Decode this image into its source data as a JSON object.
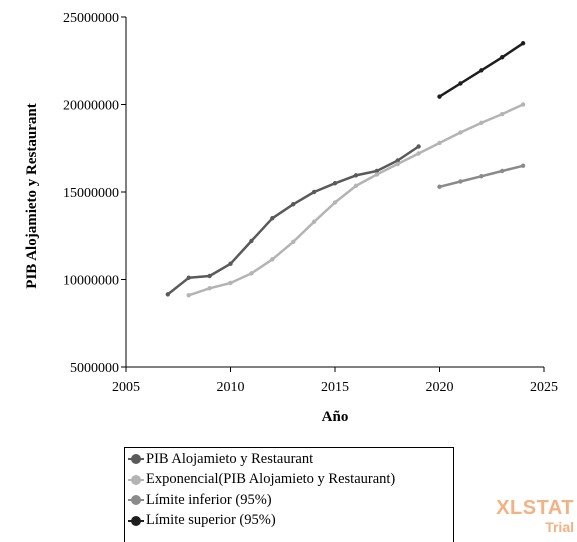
{
  "chart_data": {
    "type": "line",
    "title": "",
    "xlabel": "Año",
    "ylabel": "PIB Alojamieto y Restaurant",
    "xlim": [
      2005,
      2025
    ],
    "ylim": [
      5000000,
      25000000
    ],
    "x_ticks": [
      "2005",
      "2010",
      "2015",
      "2020",
      "2025"
    ],
    "y_ticks": [
      "5000000",
      "10000000",
      "15000000",
      "20000000",
      "25000000"
    ],
    "grid": false,
    "legend_position": "bottom",
    "series": [
      {
        "name": "PIB Alojamieto y Restaurant",
        "color": "#5a5a5a",
        "x": [
          2007,
          2008,
          2009,
          2010,
          2011,
          2012,
          2013,
          2014,
          2015,
          2016,
          2017,
          2018,
          2019
        ],
        "y": [
          9150000,
          10100000,
          10200000,
          10900000,
          12200000,
          13500000,
          14300000,
          15000000,
          15500000,
          15950000,
          16200000,
          16800000,
          17600000
        ]
      },
      {
        "name": "Exponencial(PIB Alojamieto y Restaurant)",
        "color": "#b4b4b4",
        "x": [
          2008,
          2009,
          2010,
          2011,
          2012,
          2013,
          2014,
          2015,
          2016,
          2017,
          2018,
          2019,
          2020,
          2021,
          2022,
          2023,
          2024
        ],
        "y": [
          9100000,
          9500000,
          9800000,
          10350000,
          11150000,
          12150000,
          13300000,
          14400000,
          15350000,
          16000000,
          16600000,
          17200000,
          17800000,
          18400000,
          18950000,
          19450000,
          20000000
        ]
      },
      {
        "name": "Límite inferior (95%)",
        "color": "#8a8a8a",
        "x": [
          2020,
          2021,
          2022,
          2023,
          2024
        ],
        "y": [
          15300000,
          15600000,
          15900000,
          16200000,
          16500000
        ]
      },
      {
        "name": "Límite superior (95%)",
        "color": "#1e1e1e",
        "x": [
          2020,
          2021,
          2022,
          2023,
          2024
        ],
        "y": [
          20450000,
          21200000,
          21950000,
          22700000,
          23500000
        ]
      }
    ]
  },
  "watermark": {
    "brand": "XLSTAT",
    "sub": "Trial"
  }
}
